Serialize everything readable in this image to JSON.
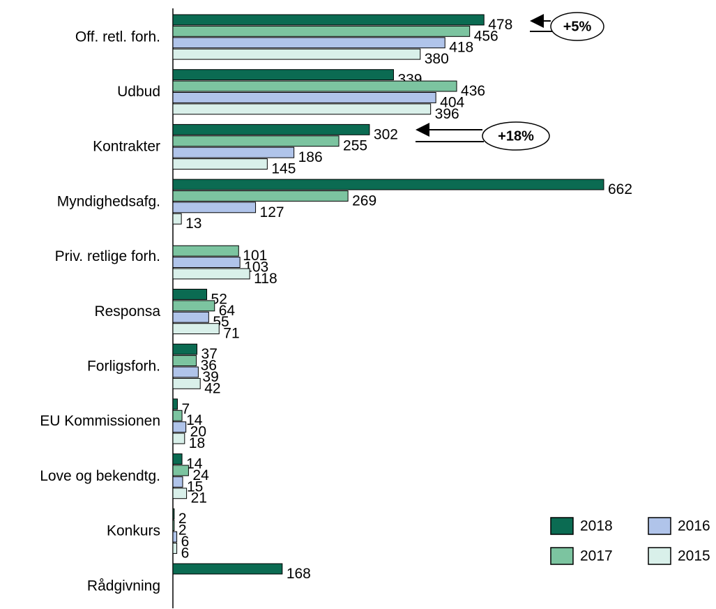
{
  "chart_data": {
    "type": "hbar",
    "categories": [
      "Off. retl. forh.",
      "Udbud",
      "Kontrakter",
      "Myndighedsafg.",
      "Priv. retlige forh.",
      "Responsa",
      "Forligsforh.",
      "EU Kommissionen",
      "Love og bekendtg.",
      "Konkurs",
      "Rådgivning"
    ],
    "series": [
      {
        "name": "2018",
        "color": "#0b6b52",
        "values": [
          478,
          339,
          302,
          662,
          null,
          52,
          37,
          7,
          14,
          2,
          168
        ]
      },
      {
        "name": "2017",
        "color": "#7cc4a0",
        "values": [
          456,
          436,
          255,
          269,
          101,
          64,
          36,
          14,
          24,
          2,
          null
        ]
      },
      {
        "name": "2016",
        "color": "#b0c4ea",
        "values": [
          418,
          404,
          186,
          127,
          103,
          55,
          39,
          20,
          15,
          6,
          null
        ]
      },
      {
        "name": "2015",
        "color": "#d9f0ea",
        "values": [
          380,
          396,
          145,
          13,
          118,
          71,
          42,
          18,
          21,
          6,
          null
        ]
      }
    ],
    "xlim": [
      0,
      662
    ],
    "annotations": [
      "+5%",
      "+18%"
    ]
  }
}
